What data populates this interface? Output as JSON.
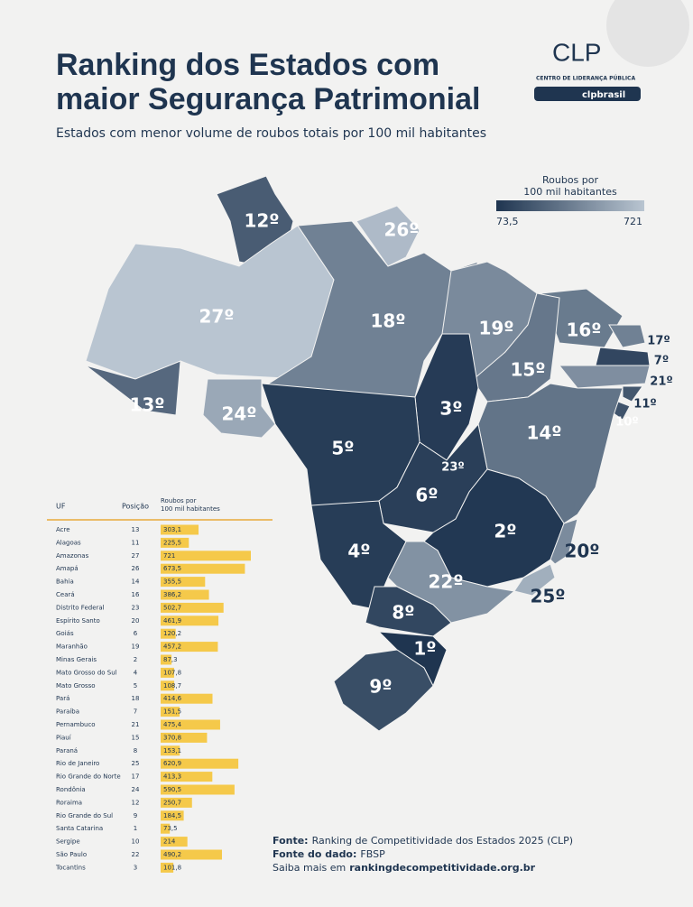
{
  "header": {
    "title_lines": [
      "Ranking dos Estados com",
      "maior Segurança Patrimonial"
    ],
    "subtitle": "Estados com menor volume de roubos totais por 100 mil habitantes"
  },
  "logo": {
    "name": "CLP",
    "tagline": "CENTRO DE LIDERANÇA PÚBLICA",
    "handle": "clpbrasil"
  },
  "legend": {
    "title_lines": [
      "Roubos por",
      "100 mil habitantes"
    ],
    "min": {
      "value": 73.5,
      "label": "73,5"
    },
    "max": 721
  },
  "map": {
    "labels": [
      "12º",
      "26º",
      "27º",
      "18º",
      "19º",
      "16º",
      "17º",
      "7º",
      "21º",
      "15º",
      "13º",
      "24º",
      "3º",
      "11º",
      "10º",
      "5º",
      "14º",
      "23º",
      "6º",
      "2º",
      "4º",
      "20º",
      "22º",
      "25º",
      "8º",
      "1º",
      "9º"
    ]
  },
  "table": {
    "headers": [
      "UF",
      "Posição",
      [
        "Roubos por",
        "100 mil habitantes"
      ]
    ],
    "rows": [
      {
        "uf": "Acre",
        "position": 13,
        "value": 303.1,
        "value_label": "303,1"
      },
      {
        "uf": "Alagoas",
        "position": 11,
        "value": 225.5,
        "value_label": "225,5"
      },
      {
        "uf": "Amazonas",
        "position": 27,
        "value": 721,
        "value_label": "721"
      },
      {
        "uf": "Amapá",
        "position": 26,
        "value": 673.5,
        "value_label": "673,5"
      },
      {
        "uf": "Bahia",
        "position": 14,
        "value": 355.5,
        "value_label": "355,5"
      },
      {
        "uf": "Ceará",
        "position": 16,
        "value": 386.2,
        "value_label": "386,2"
      },
      {
        "uf": "Distrito Federal",
        "position": 23,
        "value": 502.7,
        "value_label": "502,7"
      },
      {
        "uf": "Espírito Santo",
        "position": 20,
        "value": 461.9,
        "value_label": "461,9"
      },
      {
        "uf": "Goiás",
        "position": 6,
        "value": 120.2,
        "value_label": "120,2"
      },
      {
        "uf": "Maranhão",
        "position": 19,
        "value": 457.2,
        "value_label": "457,2"
      },
      {
        "uf": "Minas Gerais",
        "position": 2,
        "value": 87.3,
        "value_label": "87,3"
      },
      {
        "uf": "Mato Grosso do Sul",
        "position": 4,
        "value": 107.8,
        "value_label": "107,8"
      },
      {
        "uf": "Mato Grosso",
        "position": 5,
        "value": 108.7,
        "value_label": "108,7"
      },
      {
        "uf": "Pará",
        "position": 18,
        "value": 414.6,
        "value_label": "414,6"
      },
      {
        "uf": "Paraíba",
        "position": 7,
        "value": 151.5,
        "value_label": "151,5"
      },
      {
        "uf": "Pernambuco",
        "position": 21,
        "value": 475.4,
        "value_label": "475,4"
      },
      {
        "uf": "Piauí",
        "position": 15,
        "value": 370.8,
        "value_label": "370,8"
      },
      {
        "uf": "Paraná",
        "position": 8,
        "value": 153.1,
        "value_label": "153,1"
      },
      {
        "uf": "Rio de Janeiro",
        "position": 25,
        "value": 620.9,
        "value_label": "620,9"
      },
      {
        "uf": "Rio Grande do Norte",
        "position": 17,
        "value": 413.3,
        "value_label": "413,3"
      },
      {
        "uf": "Rondônia",
        "position": 24,
        "value": 590.5,
        "value_label": "590,5"
      },
      {
        "uf": "Roraima",
        "position": 12,
        "value": 250.7,
        "value_label": "250,7"
      },
      {
        "uf": "Rio Grande do Sul",
        "position": 9,
        "value": 184.5,
        "value_label": "184,5"
      },
      {
        "uf": "Santa Catarina",
        "position": 1,
        "value": 73.5,
        "value_label": "73,5"
      },
      {
        "uf": "Sergipe",
        "position": 10,
        "value": 214,
        "value_label": "214"
      },
      {
        "uf": "São Paulo",
        "position": 22,
        "value": 490.2,
        "value_label": "490,2"
      },
      {
        "uf": "Tocantins",
        "position": 3,
        "value": 101.8,
        "value_label": "101,8"
      }
    ]
  },
  "footer": {
    "lines": [
      {
        "label": "Fonte:",
        "text": "Ranking de Competitividade dos Estados 2025 (CLP)"
      },
      {
        "label": "Fonte do dado:",
        "text": "FBSP"
      },
      {
        "label": "Saiba mais em",
        "text": "rankingdecompetitividade.org.br"
      }
    ]
  }
}
